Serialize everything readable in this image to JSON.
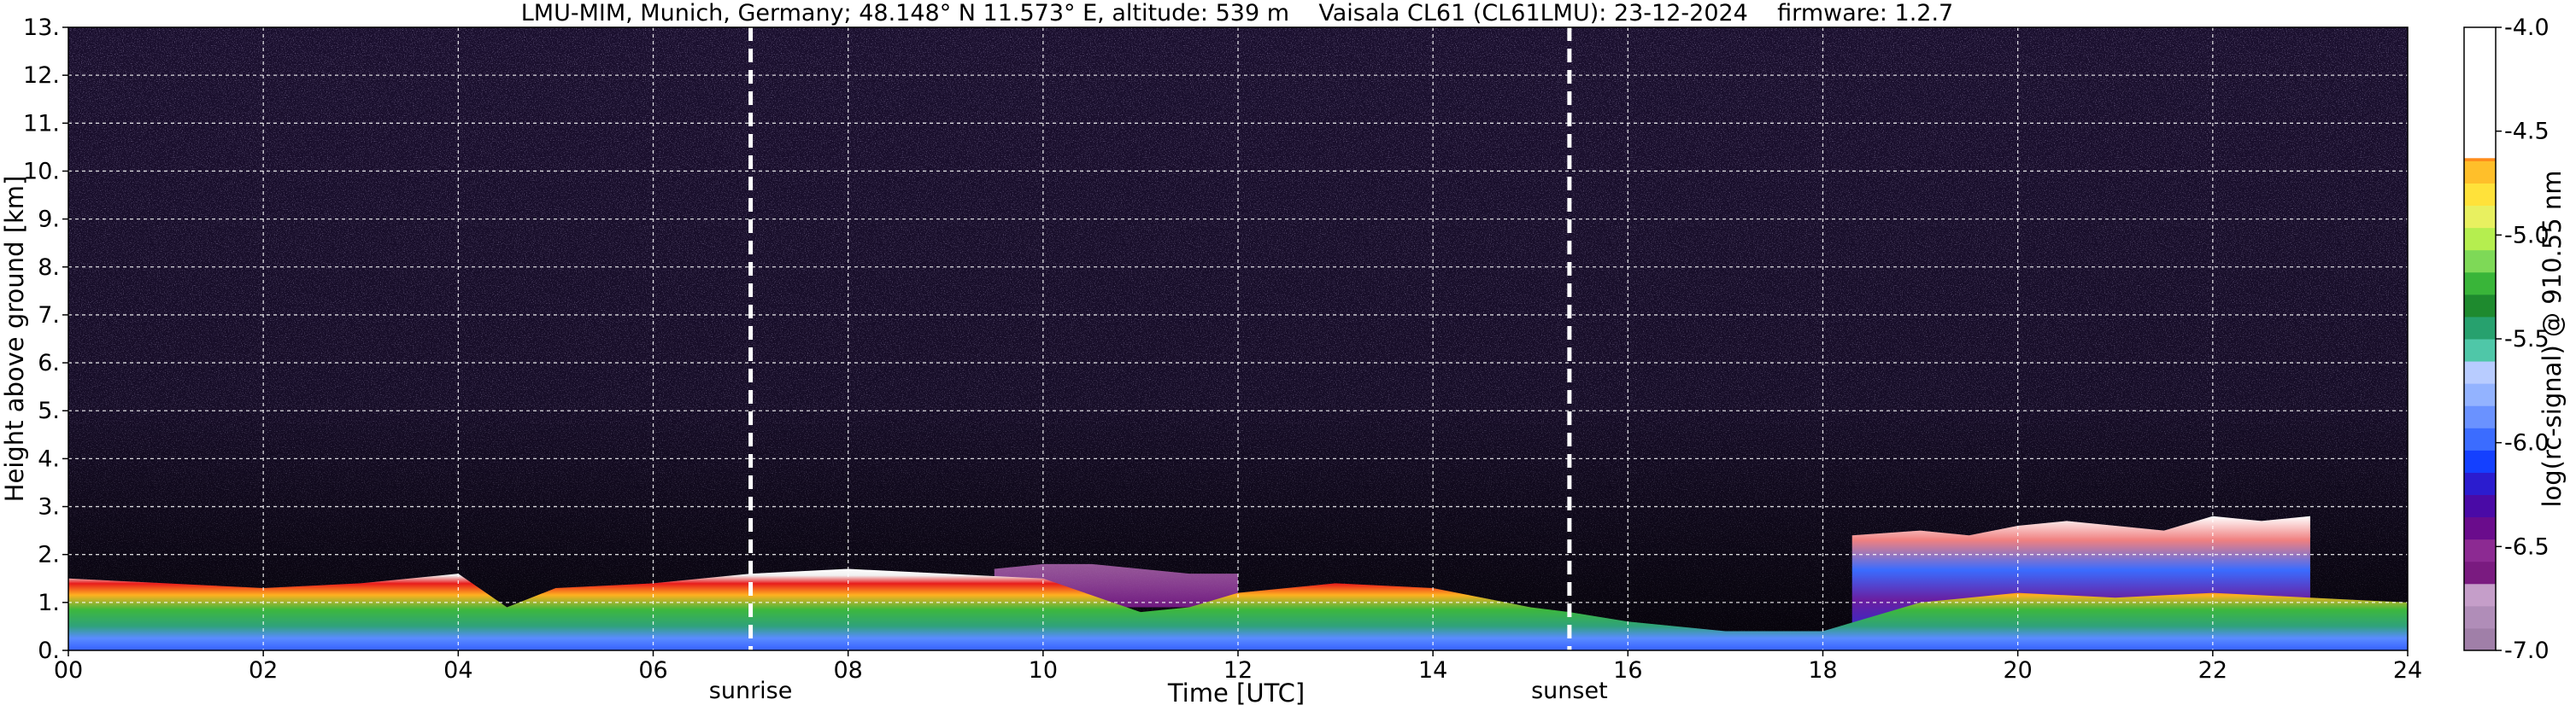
{
  "chart_data": {
    "type": "heatmap",
    "title": "LMU-MIM, Munich, Germany; 48.148° N 11.573° E, altitude: 539 m    Vaisala CL61 (CL61LMU): 23-12-2024    firmware: 1.2.7",
    "xlabel": "Time [UTC]",
    "ylabel": "Height above ground [km]",
    "xlim": [
      0,
      24
    ],
    "ylim": [
      0,
      13
    ],
    "x_ticks": [
      "00",
      "02",
      "04",
      "06",
      "08",
      "10",
      "12",
      "14",
      "16",
      "18",
      "20",
      "22",
      "24"
    ],
    "y_ticks": [
      "0.",
      "1.",
      "2.",
      "3.",
      "4.",
      "5.",
      "6.",
      "7.",
      "8.",
      "9.",
      "10.",
      "11.",
      "12.",
      "13."
    ],
    "grid": true,
    "colorbar": {
      "label": "log(rc-signal) @ 910.55 nm",
      "range": [
        -7.0,
        -4.0
      ],
      "ticks": [
        "-7.0",
        "-6.5",
        "-6.0",
        "-5.5",
        "-5.0",
        "-4.5",
        "-4.0"
      ],
      "colors": [
        "#a07fa8",
        "#b08db8",
        "#c59ec9",
        "#7a1b80",
        "#8c2a92",
        "#6a0c8c",
        "#4a0aa6",
        "#2b1ccf",
        "#1440ff",
        "#3b6cff",
        "#6a92ff",
        "#93b3ff",
        "#b8ccff",
        "#4fc7a8",
        "#27a16e",
        "#1e8a2e",
        "#39b539",
        "#7ed957",
        "#b5ee4f",
        "#e8f060",
        "#ffe23a",
        "#ffbf2a",
        "#ff8c1a",
        "#ff4d10",
        "#f01010",
        "#f4b8b8",
        "#ecd6d6",
        "#ffffff"
      ]
    },
    "annotations": [
      {
        "text": "sunrise",
        "x": 7.0
      },
      {
        "text": "sunset",
        "x": 15.4
      }
    ],
    "boundary_layer_top_km": {
      "times": [
        0,
        1,
        2,
        3,
        4,
        4.5,
        5,
        6,
        7,
        8,
        9,
        10,
        11,
        11.5,
        12,
        13,
        14,
        15,
        15.4,
        16,
        16.5,
        17,
        18,
        19,
        20,
        21,
        22,
        23,
        24
      ],
      "heights": [
        1.5,
        1.4,
        1.3,
        1.4,
        1.6,
        0.9,
        1.3,
        1.4,
        1.6,
        1.7,
        1.6,
        1.5,
        0.8,
        0.9,
        1.2,
        1.4,
        1.3,
        0.9,
        0.8,
        0.6,
        0.5,
        0.4,
        0.4,
        1.0,
        1.2,
        1.1,
        1.2,
        1.1,
        1.0
      ]
    },
    "cloud_layer_km": {
      "times": [
        18.3,
        19,
        19.5,
        20,
        20.5,
        21,
        21.5,
        22,
        22.5,
        23
      ],
      "heights": [
        2.4,
        2.5,
        2.4,
        2.6,
        2.7,
        2.6,
        2.5,
        2.8,
        2.7,
        2.8
      ]
    },
    "residual_layer_km": {
      "times": [
        9.5,
        10,
        10.5,
        11,
        11.5,
        12
      ],
      "heights": [
        1.7,
        1.8,
        1.8,
        1.7,
        1.6,
        1.6
      ]
    }
  }
}
